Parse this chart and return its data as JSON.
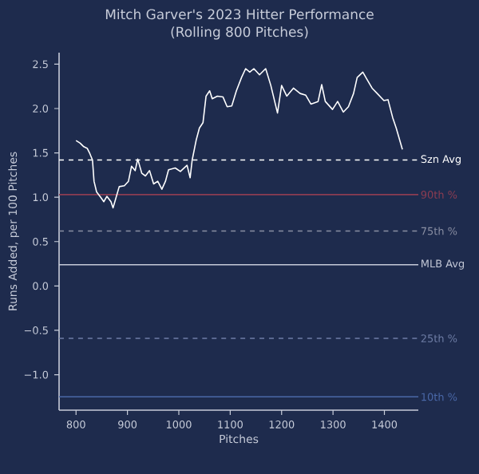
{
  "chart_data": {
    "type": "line",
    "title": "Mitch Garver's 2023 Hitter Performance",
    "subtitle": "(Rolling 800 Pitches)",
    "xlabel": "Pitches",
    "ylabel": "Runs Added, per 100 Pitches",
    "x": [
      800,
      808,
      815,
      822,
      827,
      832,
      835,
      840,
      848,
      854,
      860,
      868,
      872,
      877,
      884,
      894,
      902,
      908,
      915,
      920,
      928,
      935,
      943,
      951,
      959,
      967,
      974,
      980,
      993,
      1003,
      1016,
      1022,
      1026,
      1034,
      1040,
      1047,
      1053,
      1060,
      1065,
      1075,
      1086,
      1094,
      1103,
      1112,
      1122,
      1130,
      1138,
      1146,
      1157,
      1169,
      1179,
      1192,
      1200,
      1210,
      1223,
      1236,
      1247,
      1257,
      1271,
      1278,
      1285,
      1299,
      1309,
      1320,
      1330,
      1340,
      1347,
      1358,
      1366,
      1376,
      1386,
      1399,
      1407,
      1416,
      1423,
      1435
    ],
    "values": [
      1.64,
      1.61,
      1.57,
      1.55,
      1.49,
      1.42,
      1.18,
      1.06,
      1.0,
      0.95,
      1.01,
      0.95,
      0.88,
      0.98,
      1.12,
      1.13,
      1.18,
      1.35,
      1.3,
      1.43,
      1.27,
      1.24,
      1.3,
      1.15,
      1.18,
      1.09,
      1.18,
      1.31,
      1.33,
      1.29,
      1.36,
      1.22,
      1.42,
      1.65,
      1.78,
      1.84,
      2.14,
      2.2,
      2.11,
      2.14,
      2.13,
      2.02,
      2.03,
      2.2,
      2.35,
      2.45,
      2.41,
      2.45,
      2.38,
      2.45,
      2.26,
      1.95,
      2.26,
      2.14,
      2.23,
      2.17,
      2.15,
      2.05,
      2.08,
      2.27,
      2.08,
      1.99,
      2.08,
      1.96,
      2.02,
      2.17,
      2.35,
      2.41,
      2.33,
      2.23,
      2.17,
      2.09,
      2.1,
      1.9,
      1.78,
      1.54
    ],
    "color": "#ffffff",
    "line_style": "solid",
    "marker": "none",
    "grid": false,
    "xlim": [
      767,
      1466
    ],
    "ylim": [
      -1.4,
      2.63
    ],
    "xticks": [
      800,
      900,
      1000,
      1100,
      1200,
      1300,
      1400
    ],
    "yticks": [
      {
        "value": -1.0,
        "label": "−1.0"
      },
      {
        "value": -0.5,
        "label": "−0.5"
      },
      {
        "value": 0.0,
        "label": "0.0"
      },
      {
        "value": 0.5,
        "label": "0.5"
      },
      {
        "value": 1.0,
        "label": "1.0"
      },
      {
        "value": 1.5,
        "label": "1.5"
      },
      {
        "value": 2.0,
        "label": "2.0"
      },
      {
        "value": 2.5,
        "label": "2.5"
      }
    ],
    "ref_lines": [
      {
        "axis": "y",
        "value": 1.42,
        "label": "Szn Avg",
        "color": "#ffffff",
        "line_style": "dashed"
      },
      {
        "axis": "y",
        "value": 1.03,
        "label": "90th %",
        "color": "#8c3d52",
        "line_style": "solid"
      },
      {
        "axis": "y",
        "value": 0.62,
        "label": "75th %",
        "color": "#8a8fa3",
        "line_style": "dashed"
      },
      {
        "axis": "y",
        "value": 0.24,
        "label": "MLB Avg",
        "color": "#c5cad8",
        "line_style": "solid"
      },
      {
        "axis": "y",
        "value": -0.59,
        "label": "25th %",
        "color": "#6f7ea6",
        "line_style": "dashed"
      },
      {
        "axis": "y",
        "value": -1.25,
        "label": "10th %",
        "color": "#4a68a8",
        "line_style": "solid"
      }
    ]
  }
}
